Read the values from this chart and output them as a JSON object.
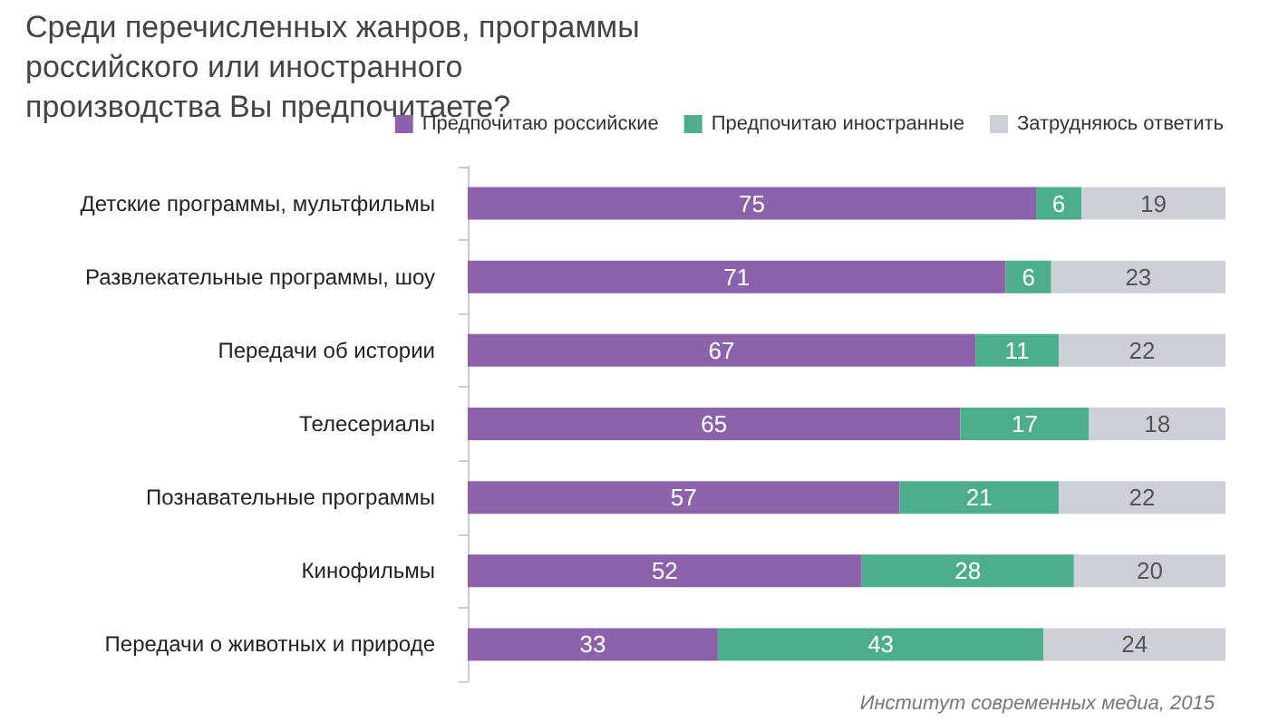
{
  "chart_data": {
    "type": "bar",
    "orientation": "horizontal",
    "stacked": true,
    "title": "Среди перечисленных жанров, программы российского или иностранного производства Вы предпочитаете?",
    "categories": [
      "Детские программы, мультфильмы",
      "Развлекательные программы, шоу",
      "Передачи об истории",
      "Телесериалы",
      "Познавательные программы",
      "Кинофильмы",
      "Передачи о животных и природе"
    ],
    "series": [
      {
        "name": "Предпочитаю российские",
        "color": "#8c62aa",
        "values": [
          75,
          71,
          67,
          65,
          57,
          52,
          33
        ]
      },
      {
        "name": "Предпочитаю иностранные",
        "color": "#4cae8a",
        "values": [
          6,
          6,
          11,
          17,
          21,
          28,
          43
        ]
      },
      {
        "name": "Затрудняюсь ответить",
        "color": "#cdd0d8",
        "values": [
          19,
          23,
          22,
          18,
          22,
          20,
          24
        ]
      }
    ],
    "xlim": [
      0,
      100
    ],
    "tick_labels": "y",
    "data_labels": true,
    "legend": "top right",
    "grid": false,
    "annotations": [
      "Институт современных медиа, 2015"
    ]
  }
}
